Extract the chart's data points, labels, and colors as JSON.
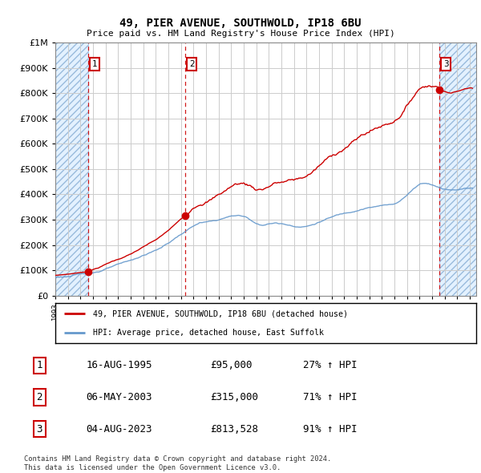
{
  "title": "49, PIER AVENUE, SOUTHWOLD, IP18 6BU",
  "subtitle": "Price paid vs. HM Land Registry's House Price Index (HPI)",
  "sale_points": [
    {
      "label": "1",
      "date": "16-AUG-1995",
      "year": 1995.62,
      "price": 95000,
      "pct": "27%",
      "dir": "↑"
    },
    {
      "label": "2",
      "date": "06-MAY-2003",
      "year": 2003.35,
      "price": 315000,
      "pct": "71%",
      "dir": "↑"
    },
    {
      "label": "3",
      "date": "04-AUG-2023",
      "year": 2023.59,
      "price": 813528,
      "pct": "91%",
      "dir": "↑"
    }
  ],
  "legend_line1": "49, PIER AVENUE, SOUTHWOLD, IP18 6BU (detached house)",
  "legend_line2": "HPI: Average price, detached house, East Suffolk",
  "table_rows": [
    [
      "1",
      "16-AUG-1995",
      "£95,000",
      "27% ↑ HPI"
    ],
    [
      "2",
      "06-MAY-2003",
      "£315,000",
      "71% ↑ HPI"
    ],
    [
      "3",
      "04-AUG-2023",
      "£813,528",
      "91% ↑ HPI"
    ]
  ],
  "footer1": "Contains HM Land Registry data © Crown copyright and database right 2024.",
  "footer2": "This data is licensed under the Open Government Licence v3.0.",
  "red_color": "#cc0000",
  "blue_color": "#6699cc",
  "hatch_color": "#ddeeff",
  "grid_color": "#cccccc",
  "ylim": [
    0,
    1000000
  ],
  "xlim_start": 1993.0,
  "xlim_end": 2026.5,
  "hatch_left_end": 1995.62,
  "hatch_right_start": 2023.59
}
